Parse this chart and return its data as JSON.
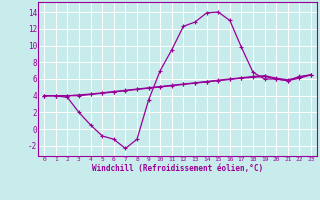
{
  "xlabel": "Windchill (Refroidissement éolien,°C)",
  "bg_color": "#c8ecec",
  "line_color": "#990099",
  "grid_color": "#ffffff",
  "xlim": [
    -0.5,
    23.5
  ],
  "ylim": [
    -3.2,
    15.2
  ],
  "yticks": [
    -2,
    0,
    2,
    4,
    6,
    8,
    10,
    12,
    14
  ],
  "xticks": [
    0,
    1,
    2,
    3,
    4,
    5,
    6,
    7,
    8,
    9,
    10,
    11,
    12,
    13,
    14,
    15,
    16,
    17,
    18,
    19,
    20,
    21,
    22,
    23
  ],
  "line1_x": [
    0,
    1,
    2,
    3,
    4,
    5,
    6,
    7,
    8,
    9,
    10,
    11,
    12,
    13,
    14,
    15,
    16,
    17,
    18,
    19,
    20,
    21,
    22,
    23
  ],
  "line1_y": [
    4.0,
    4.0,
    3.8,
    2.0,
    0.5,
    -0.8,
    -1.2,
    -2.3,
    -1.2,
    3.5,
    7.0,
    9.5,
    12.3,
    12.8,
    13.9,
    14.0,
    13.0,
    9.8,
    6.8,
    6.0,
    6.0,
    5.8,
    6.3,
    6.5
  ],
  "line2_x": [
    0,
    1,
    2,
    3,
    4,
    5,
    6,
    7,
    8,
    9,
    10,
    11,
    12,
    13,
    14,
    15,
    16,
    17,
    18,
    19,
    20,
    21,
    22,
    23
  ],
  "line2_y": [
    4.0,
    4.0,
    4.0,
    4.0,
    4.15,
    4.3,
    4.45,
    4.6,
    4.75,
    4.9,
    5.05,
    5.2,
    5.35,
    5.5,
    5.65,
    5.8,
    5.95,
    6.1,
    6.2,
    6.3,
    6.0,
    5.8,
    6.1,
    6.5
  ],
  "line3_x": [
    0,
    1,
    2,
    3,
    4,
    5,
    6,
    7,
    8,
    9,
    10,
    11,
    12,
    13,
    14,
    15,
    16,
    17,
    18,
    19,
    20,
    21,
    22,
    23
  ],
  "line3_y": [
    4.0,
    4.0,
    4.0,
    4.1,
    4.2,
    4.35,
    4.5,
    4.65,
    4.8,
    4.95,
    5.1,
    5.25,
    5.4,
    5.55,
    5.7,
    5.85,
    6.0,
    6.15,
    6.3,
    6.4,
    6.1,
    5.9,
    6.2,
    6.5
  ]
}
